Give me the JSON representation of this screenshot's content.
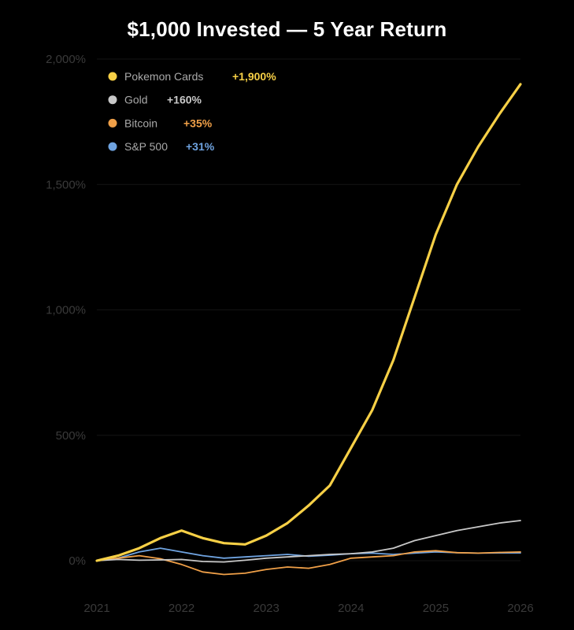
{
  "chart_data": {
    "type": "line",
    "title": "$1,000 Invested — 5 Year Return",
    "xlabel": "",
    "ylabel": "",
    "xlim": [
      2021,
      2026
    ],
    "ylim": [
      -100,
      2000
    ],
    "x_ticks": [
      "2021",
      "2022",
      "2023",
      "2024",
      "2025",
      "2026"
    ],
    "y_ticks": [
      {
        "value": 0,
        "label": "0%"
      },
      {
        "value": 500,
        "label": "500%"
      },
      {
        "value": 1000,
        "label": "1,000%"
      },
      {
        "value": 1500,
        "label": "1,500%"
      },
      {
        "value": 2000,
        "label": "2,000%"
      }
    ],
    "grid": "horizontal",
    "legend_position": "top-left",
    "series": [
      {
        "name": "Pokemon Cards",
        "label": "+1,900%",
        "color": "#f7d046",
        "x": [
          2021,
          2021.25,
          2021.5,
          2021.75,
          2022,
          2022.25,
          2022.5,
          2022.75,
          2023,
          2023.25,
          2023.5,
          2023.75,
          2024,
          2024.25,
          2024.5,
          2024.75,
          2025,
          2025.25,
          2025.5,
          2025.75,
          2026
        ],
        "values": [
          0,
          20,
          50,
          90,
          120,
          90,
          70,
          65,
          100,
          150,
          220,
          300,
          450,
          600,
          800,
          1050,
          1300,
          1500,
          1650,
          1780,
          1900
        ]
      },
      {
        "name": "Gold",
        "label": "+160%",
        "color": "#c8c8c8",
        "x": [
          2021,
          2021.25,
          2021.5,
          2021.75,
          2022,
          2022.25,
          2022.5,
          2022.75,
          2023,
          2023.25,
          2023.5,
          2023.75,
          2024,
          2024.25,
          2024.5,
          2024.75,
          2025,
          2025.25,
          2025.5,
          2025.75,
          2026
        ],
        "values": [
          0,
          5,
          2,
          3,
          5,
          -3,
          -5,
          2,
          10,
          15,
          20,
          25,
          28,
          35,
          50,
          80,
          100,
          120,
          135,
          150,
          160
        ]
      },
      {
        "name": "Bitcoin",
        "label": "+35%",
        "color": "#f0a048",
        "x": [
          2021,
          2021.25,
          2021.5,
          2021.75,
          2022,
          2022.25,
          2022.5,
          2022.75,
          2023,
          2023.25,
          2023.5,
          2023.75,
          2024,
          2024.25,
          2024.5,
          2024.75,
          2025,
          2025.25,
          2025.5,
          2025.75,
          2026
        ],
        "values": [
          0,
          10,
          20,
          8,
          -15,
          -45,
          -55,
          -50,
          -35,
          -25,
          -30,
          -15,
          10,
          15,
          20,
          35,
          40,
          32,
          30,
          33,
          35
        ]
      },
      {
        "name": "S&P 500",
        "label": "+31%",
        "color": "#6fa3e0",
        "x": [
          2021,
          2021.25,
          2021.5,
          2021.75,
          2022,
          2022.25,
          2022.5,
          2022.75,
          2023,
          2023.25,
          2023.5,
          2023.75,
          2024,
          2024.25,
          2024.5,
          2024.75,
          2025,
          2025.25,
          2025.5,
          2025.75,
          2026
        ],
        "values": [
          0,
          10,
          35,
          50,
          35,
          20,
          10,
          15,
          20,
          25,
          18,
          22,
          28,
          30,
          25,
          30,
          35,
          32,
          30,
          31,
          31
        ]
      }
    ]
  }
}
